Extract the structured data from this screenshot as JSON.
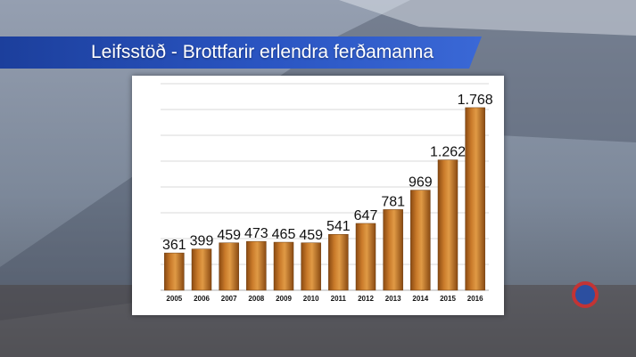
{
  "title": "Leifsstöð - Brottfarir erlendra ferðamanna",
  "colors": {
    "banner": "#2a55c2",
    "bar_light": "#d98a32",
    "bar_dark": "#8a4a12",
    "grid": "#d9d9d9"
  },
  "chart_data": {
    "type": "bar",
    "title": "Leifsstöð - Brottfarir erlendra ferðamanna",
    "categories": [
      "2005",
      "2006",
      "2007",
      "2008",
      "2009",
      "2010",
      "2011",
      "2012",
      "2013",
      "2014",
      "2015",
      "2016"
    ],
    "values": [
      361,
      399,
      459,
      473,
      465,
      459,
      541,
      647,
      781,
      969,
      1262,
      1768
    ],
    "data_labels": [
      "361",
      "399",
      "459",
      "473",
      "465",
      "459",
      "541",
      "647",
      "781",
      "969",
      "1.262",
      "1.768"
    ],
    "xlabel": "",
    "ylabel": "",
    "ylim": [
      0,
      2000
    ],
    "grid": true,
    "legend": "none"
  }
}
